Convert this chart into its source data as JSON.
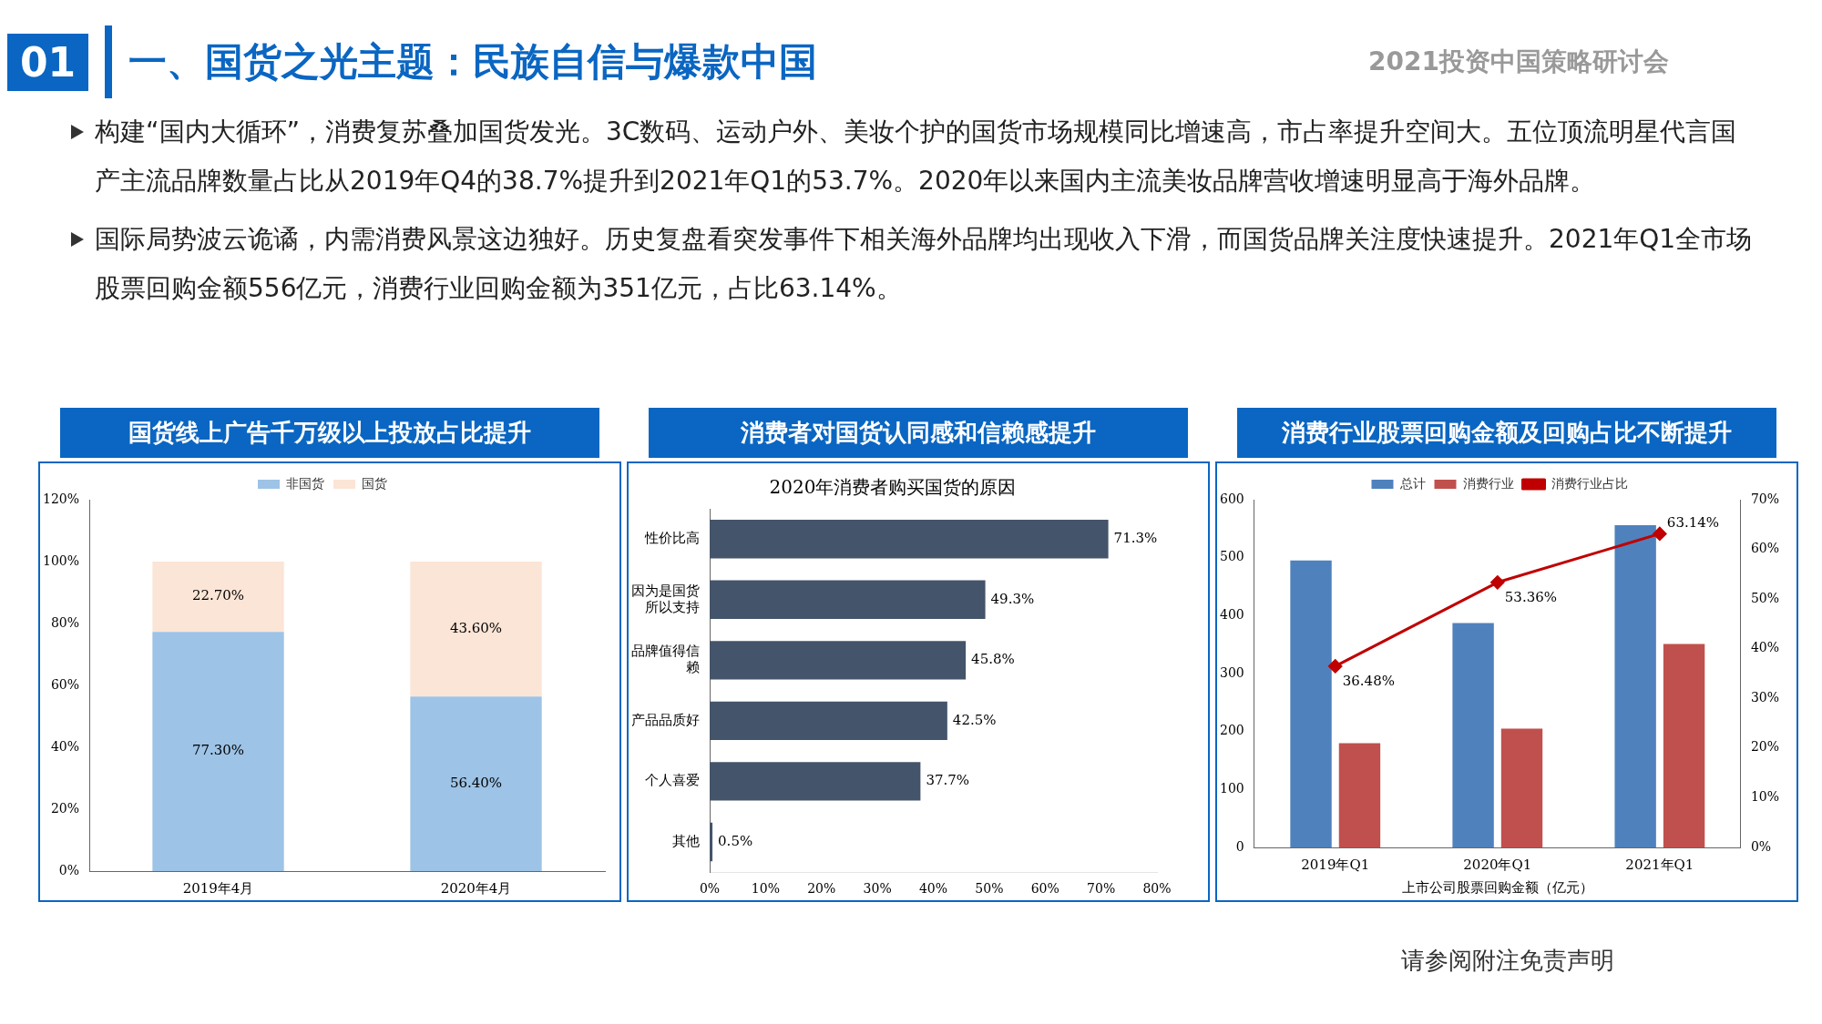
{
  "chart_data": [
    {
      "type": "other",
      "title": "一、国货之光主题：民族自信与爆款中国",
      "subtitle": "2021投资中国策略研讨会",
      "annotations": [
        "01",
        "构建“国内大循环”，消费复苏叠加国货发光。3C数码、运动户外、美妆个护的国货市场规模同比增速高，市占率提升空间大。五位顶流明星代言国产主流品牌数量占比从2019年Q4的38.7%提升到2021年Q1的53.7%。2020年以来国内主流美妆品牌营收增速明显高于海外品牌。",
        "国际局势波云诡谲，内需消费风景这边独好。历史复盘看突发事件下相关海外品牌均出现收入下滑，而国货品牌关注度快速提升。2021年Q1全市场股票回购金额556亿元，消费行业回购金额为351亿元，占比63.14%。",
        "请参阅附注免责声明"
      ]
    },
    {
      "type": "bar",
      "title": "国货线上广告千万级以上投放占比提升",
      "stacked": true,
      "legend": "top",
      "categories": [
        "2019年4月",
        "2020年4月"
      ],
      "series": [
        {
          "name": "非国货",
          "color": "#9dc3e6",
          "values": [
            77.3,
            56.4
          ],
          "value_labels": [
            "77.30%",
            "56.40%"
          ]
        },
        {
          "name": "国货",
          "color": "#fbe5d6",
          "values": [
            22.7,
            43.6
          ],
          "value_labels": [
            "22.70%",
            "43.60%"
          ]
        }
      ],
      "ylim": [
        0,
        120
      ],
      "yticks": [
        {
          "value": 0,
          "label": "0%"
        },
        {
          "value": 20,
          "label": "20%"
        },
        {
          "value": 40,
          "label": "40%"
        },
        {
          "value": 60,
          "label": "60%"
        },
        {
          "value": 80,
          "label": "80%"
        },
        {
          "value": 100,
          "label": "100%"
        },
        {
          "value": 120,
          "label": "120%"
        }
      ]
    },
    {
      "type": "bar",
      "title": "消费者对国货认同感和信赖感提升",
      "subtitle": "2020年消费者购买国货的原因",
      "orientation": "horizontal",
      "categories": [
        "性价比高",
        "因为是国货所以支持",
        "品牌值得信赖",
        "产品品质好",
        "个人喜爱",
        "其他"
      ],
      "series": [
        {
          "color": "#44546a",
          "values": [
            71.3,
            49.3,
            45.8,
            42.5,
            37.7,
            0.5
          ],
          "value_labels": [
            "71.3%",
            "49.3%",
            "45.8%",
            "42.5%",
            "37.7%",
            "0.5%"
          ]
        }
      ],
      "xlim": [
        0,
        80
      ],
      "xticks": [
        {
          "value": 0,
          "label": "0%"
        },
        {
          "value": 10,
          "label": "10%"
        },
        {
          "value": 20,
          "label": "20%"
        },
        {
          "value": 30,
          "label": "30%"
        },
        {
          "value": 40,
          "label": "40%"
        },
        {
          "value": 50,
          "label": "50%"
        },
        {
          "value": 60,
          "label": "60%"
        },
        {
          "value": 70,
          "label": "70%"
        },
        {
          "value": 80,
          "label": "80%"
        }
      ]
    },
    {
      "type": "bar",
      "title": "消费行业股票回购金额及回购占比不断提升",
      "xlabel": "上市公司股票回购金额（亿元）",
      "legend": "top",
      "categories": [
        "2019年Q1",
        "2020年Q1",
        "2021年Q1"
      ],
      "series": [
        {
          "name": "总计",
          "color": "#4f81bd",
          "values": [
            495,
            387,
            556
          ]
        },
        {
          "name": "消费行业",
          "color": "#c0504d",
          "values": [
            180,
            205,
            351
          ]
        },
        {
          "name": "消费行业占比",
          "type": "line",
          "axis": "y2",
          "marker": "diamond",
          "color": "#c00000",
          "values": [
            36.48,
            53.36,
            63.14
          ],
          "value_labels": [
            "36.48%",
            "53.36%",
            "63.14%"
          ]
        }
      ],
      "ylim": [
        0,
        600
      ],
      "yticks": [
        0,
        100,
        200,
        300,
        400,
        500,
        600
      ],
      "y2lim": [
        0,
        70
      ],
      "y2ticks": [
        {
          "value": 0,
          "label": "0%"
        },
        {
          "value": 10,
          "label": "10%"
        },
        {
          "value": 20,
          "label": "20%"
        },
        {
          "value": 30,
          "label": "30%"
        },
        {
          "value": 40,
          "label": "40%"
        },
        {
          "value": 50,
          "label": "50%"
        },
        {
          "value": 60,
          "label": "60%"
        },
        {
          "value": 70,
          "label": "70%"
        }
      ]
    }
  ]
}
